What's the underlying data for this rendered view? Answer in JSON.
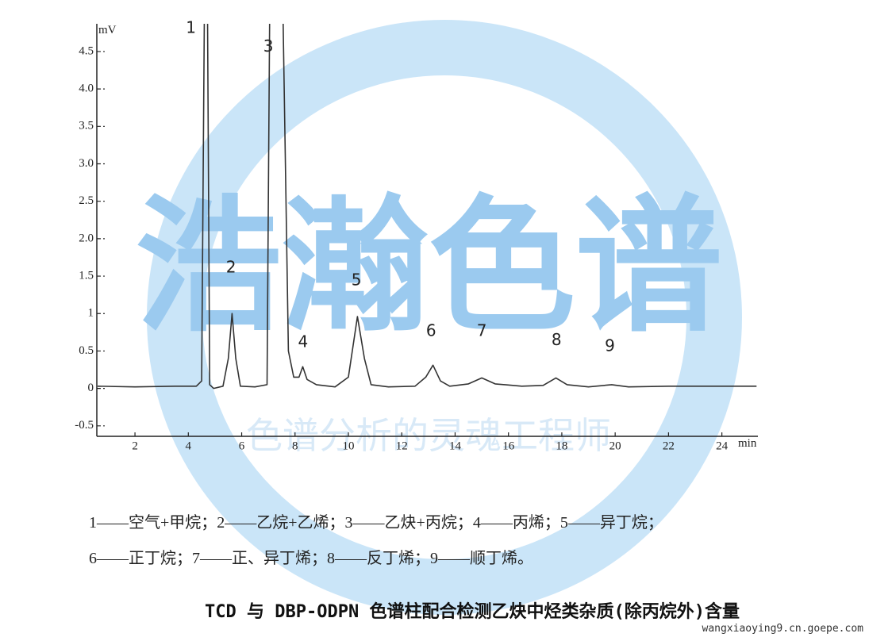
{
  "chart_data": {
    "type": "line",
    "x_label": "min",
    "y_label": "mV",
    "x": [
      0.6,
      2,
      3.5,
      4.3,
      4.5,
      4.6,
      4.72,
      4.8,
      4.95,
      5.3,
      5.5,
      5.64,
      5.78,
      5.95,
      6.5,
      6.95,
      7.05,
      7.55,
      7.75,
      7.95,
      8.15,
      8.29,
      8.45,
      8.8,
      9.5,
      10.0,
      10.34,
      10.6,
      10.85,
      11.5,
      12.5,
      12.9,
      13.17,
      13.45,
      13.8,
      14.5,
      15.0,
      15.5,
      16.5,
      17.3,
      17.78,
      18.2,
      19,
      19.87,
      20.5,
      22,
      25.3
    ],
    "series": [
      {
        "color": "#333333",
        "values": [
          0.03,
          0.02,
          0.03,
          0.03,
          0.1,
          5.0,
          5.0,
          0.05,
          0.0,
          0.03,
          0.4,
          1.0,
          0.4,
          0.03,
          0.02,
          0.05,
          5.0,
          5.0,
          0.5,
          0.15,
          0.15,
          0.29,
          0.12,
          0.05,
          0.02,
          0.15,
          0.96,
          0.4,
          0.05,
          0.02,
          0.03,
          0.15,
          0.31,
          0.1,
          0.03,
          0.06,
          0.14,
          0.06,
          0.03,
          0.04,
          0.14,
          0.05,
          0.02,
          0.05,
          0.02,
          0.03,
          0.03
        ]
      }
    ],
    "xlim": [
      0.57,
      25.35
    ],
    "ylim": [
      -0.64,
      4.87
    ],
    "xticks": [
      2,
      4,
      6,
      8,
      10,
      12,
      14,
      16,
      18,
      20,
      22,
      24
    ],
    "yticks": [
      -0.5,
      0,
      0.5,
      1,
      1.5,
      {
        "value": 2,
        "label": "2.0"
      },
      2.5,
      {
        "value": 3,
        "label": "3.0"
      },
      3.5,
      {
        "value": 4,
        "label": "4.0"
      },
      4.5
    ],
    "annotations": [
      {
        "text": "1",
        "x": 4.1,
        "y": 4.75
      },
      {
        "text": "2",
        "x": 5.6,
        "y": 1.55
      },
      {
        "text": "3",
        "x": 7.0,
        "y": 4.5
      },
      {
        "text": "4",
        "x": 8.3,
        "y": 0.55
      },
      {
        "text": "5",
        "x": 10.3,
        "y": 1.38
      },
      {
        "text": "6",
        "x": 13.1,
        "y": 0.7
      },
      {
        "text": "7",
        "x": 15.0,
        "y": 0.7
      },
      {
        "text": "8",
        "x": 17.8,
        "y": 0.58
      },
      {
        "text": "9",
        "x": 19.8,
        "y": 0.5
      }
    ]
  },
  "caption": {
    "lines": [
      "1——空气+甲烷；2——乙烷+乙烯；3——乙炔+丙烷；4——丙烯；5——异丁烷；",
      "6——正丁烷；7——正、异丁烯；8——反丁烯；9——顺丁烯。"
    ],
    "title": "TCD 与 DBP-ODPN 色谱柱配合检测乙炔中烃类杂质(除丙烷外)含量"
  },
  "watermark": {
    "main": "浩瀚色谱",
    "slogan": "色谱分析的灵魂工程师",
    "url": "wangxiaoying9.cn.goepe.com"
  }
}
